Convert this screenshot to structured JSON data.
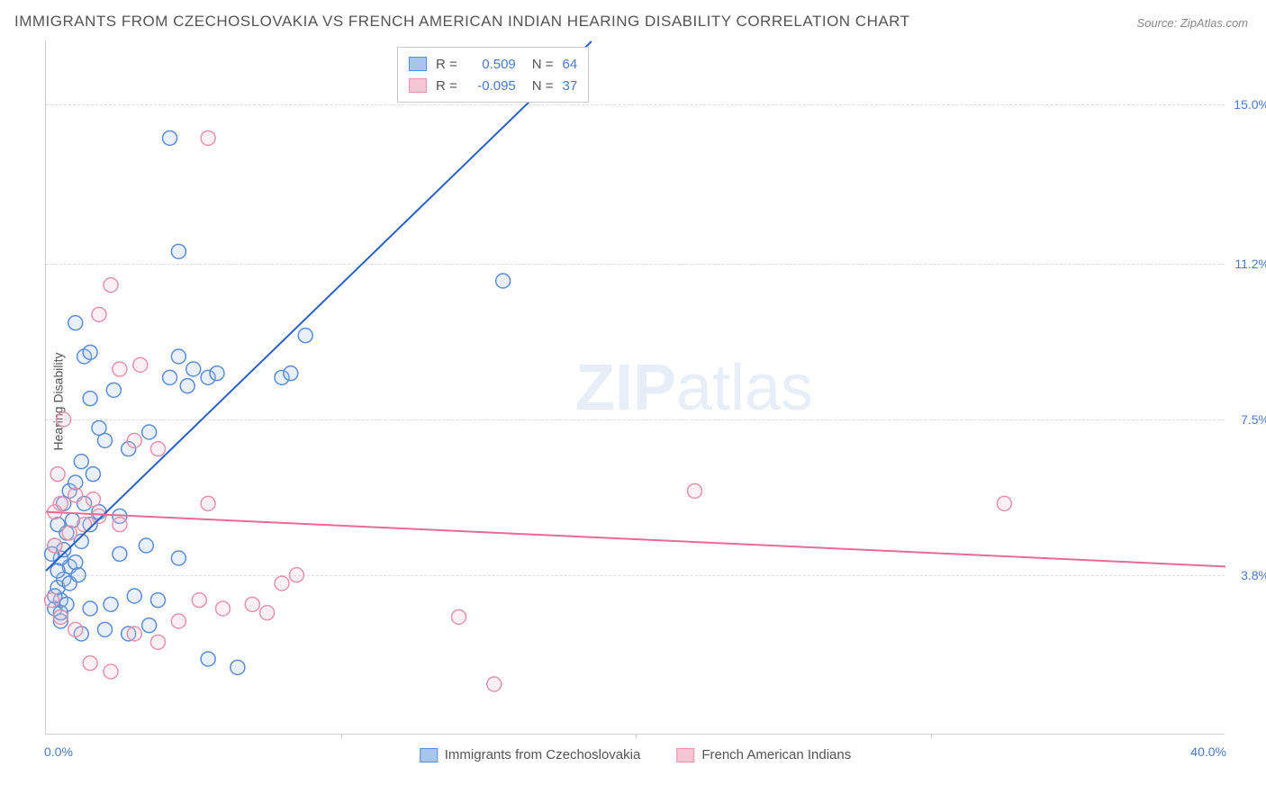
{
  "title": "IMMIGRANTS FROM CZECHOSLOVAKIA VS FRENCH AMERICAN INDIAN HEARING DISABILITY CORRELATION CHART",
  "source": "Source: ZipAtlas.com",
  "ylabel": "Hearing Disability",
  "watermark_bold": "ZIP",
  "watermark_rest": "atlas",
  "chart": {
    "type": "scatter",
    "xlim": [
      0,
      40
    ],
    "ylim": [
      0,
      16.5
    ],
    "xtick_labels": [
      "0.0%",
      "40.0%"
    ],
    "xtick_positions": [
      0,
      40
    ],
    "xtick_minor_positions": [
      10,
      20,
      30
    ],
    "ytick_labels": [
      "3.8%",
      "7.5%",
      "11.2%",
      "15.0%"
    ],
    "ytick_positions": [
      3.8,
      7.5,
      11.2,
      15.0
    ],
    "background_color": "#ffffff",
    "grid_color": "#dddddd",
    "axis_color": "#cccccc",
    "marker_radius": 8,
    "marker_stroke_width": 1.5,
    "marker_fill_opacity": 0.25,
    "trend_line_width": 2,
    "series": [
      {
        "name": "Immigrants from Czechoslovakia",
        "color_stroke": "#5b8dd6",
        "color_fill": "#a8c5eb",
        "trend_color": "#2b5fc2",
        "R": "0.509",
        "N": "64",
        "trend": {
          "x1": 0,
          "y1": 3.9,
          "x2": 18.5,
          "y2": 16.5
        },
        "points": [
          {
            "x": 0.3,
            "y": 3.0
          },
          {
            "x": 0.5,
            "y": 3.2
          },
          {
            "x": 0.4,
            "y": 3.5
          },
          {
            "x": 0.6,
            "y": 3.7
          },
          {
            "x": 0.8,
            "y": 4.0
          },
          {
            "x": 0.5,
            "y": 4.2
          },
          {
            "x": 1.0,
            "y": 4.1
          },
          {
            "x": 0.3,
            "y": 4.5
          },
          {
            "x": 0.7,
            "y": 4.8
          },
          {
            "x": 1.2,
            "y": 4.6
          },
          {
            "x": 0.4,
            "y": 5.0
          },
          {
            "x": 0.9,
            "y": 5.1
          },
          {
            "x": 1.5,
            "y": 5.0
          },
          {
            "x": 0.6,
            "y": 5.5
          },
          {
            "x": 1.3,
            "y": 5.5
          },
          {
            "x": 0.8,
            "y": 5.8
          },
          {
            "x": 1.8,
            "y": 5.3
          },
          {
            "x": 1.0,
            "y": 6.0
          },
          {
            "x": 1.6,
            "y": 6.2
          },
          {
            "x": 2.5,
            "y": 5.2
          },
          {
            "x": 0.5,
            "y": 2.7
          },
          {
            "x": 1.2,
            "y": 2.4
          },
          {
            "x": 2.0,
            "y": 2.5
          },
          {
            "x": 2.8,
            "y": 2.4
          },
          {
            "x": 3.5,
            "y": 2.6
          },
          {
            "x": 1.5,
            "y": 3.0
          },
          {
            "x": 2.2,
            "y": 3.1
          },
          {
            "x": 3.0,
            "y": 3.3
          },
          {
            "x": 3.8,
            "y": 3.2
          },
          {
            "x": 2.5,
            "y": 4.3
          },
          {
            "x": 3.4,
            "y": 4.5
          },
          {
            "x": 4.5,
            "y": 4.2
          },
          {
            "x": 5.5,
            "y": 1.8
          },
          {
            "x": 6.5,
            "y": 1.6
          },
          {
            "x": 1.2,
            "y": 6.5
          },
          {
            "x": 2.0,
            "y": 7.0
          },
          {
            "x": 1.8,
            "y": 7.3
          },
          {
            "x": 2.8,
            "y": 6.8
          },
          {
            "x": 3.5,
            "y": 7.2
          },
          {
            "x": 1.5,
            "y": 8.0
          },
          {
            "x": 2.3,
            "y": 8.2
          },
          {
            "x": 4.2,
            "y": 8.5
          },
          {
            "x": 4.8,
            "y": 8.3
          },
          {
            "x": 5.5,
            "y": 8.5
          },
          {
            "x": 5.8,
            "y": 8.6
          },
          {
            "x": 8.0,
            "y": 8.5
          },
          {
            "x": 8.3,
            "y": 8.6
          },
          {
            "x": 1.3,
            "y": 9.0
          },
          {
            "x": 1.5,
            "y": 9.1
          },
          {
            "x": 4.5,
            "y": 9.0
          },
          {
            "x": 8.8,
            "y": 9.5
          },
          {
            "x": 1.0,
            "y": 9.8
          },
          {
            "x": 15.5,
            "y": 10.8
          },
          {
            "x": 4.5,
            "y": 11.5
          },
          {
            "x": 4.2,
            "y": 14.2
          },
          {
            "x": 0.3,
            "y": 3.3
          },
          {
            "x": 0.4,
            "y": 3.9
          },
          {
            "x": 0.6,
            "y": 4.4
          },
          {
            "x": 0.8,
            "y": 3.6
          },
          {
            "x": 1.1,
            "y": 3.8
          },
          {
            "x": 0.2,
            "y": 4.3
          },
          {
            "x": 0.5,
            "y": 2.9
          },
          {
            "x": 0.7,
            "y": 3.1
          },
          {
            "x": 5.0,
            "y": 8.7
          }
        ]
      },
      {
        "name": "French American Indians",
        "color_stroke": "#e593ab",
        "color_fill": "#f5c5d3",
        "trend_color": "#e86b93",
        "R": "-0.095",
        "N": "37",
        "trend": {
          "x1": 0,
          "y1": 5.3,
          "x2": 40,
          "y2": 4.0
        },
        "points": [
          {
            "x": 0.2,
            "y": 3.2
          },
          {
            "x": 0.5,
            "y": 2.8
          },
          {
            "x": 1.0,
            "y": 2.5
          },
          {
            "x": 1.5,
            "y": 1.7
          },
          {
            "x": 2.2,
            "y": 1.5
          },
          {
            "x": 3.0,
            "y": 2.4
          },
          {
            "x": 3.8,
            "y": 2.2
          },
          {
            "x": 4.5,
            "y": 2.7
          },
          {
            "x": 5.2,
            "y": 3.2
          },
          {
            "x": 6.0,
            "y": 3.0
          },
          {
            "x": 7.0,
            "y": 3.1
          },
          {
            "x": 8.0,
            "y": 3.6
          },
          {
            "x": 8.5,
            "y": 3.8
          },
          {
            "x": 14.0,
            "y": 2.8
          },
          {
            "x": 15.2,
            "y": 1.2
          },
          {
            "x": 0.3,
            "y": 4.5
          },
          {
            "x": 0.8,
            "y": 4.8
          },
          {
            "x": 1.3,
            "y": 5.0
          },
          {
            "x": 1.8,
            "y": 5.2
          },
          {
            "x": 2.5,
            "y": 5.0
          },
          {
            "x": 0.5,
            "y": 5.5
          },
          {
            "x": 1.0,
            "y": 5.7
          },
          {
            "x": 1.6,
            "y": 5.6
          },
          {
            "x": 0.4,
            "y": 6.2
          },
          {
            "x": 5.5,
            "y": 5.5
          },
          {
            "x": 3.0,
            "y": 7.0
          },
          {
            "x": 3.8,
            "y": 6.8
          },
          {
            "x": 0.6,
            "y": 7.5
          },
          {
            "x": 2.5,
            "y": 8.7
          },
          {
            "x": 3.2,
            "y": 8.8
          },
          {
            "x": 1.8,
            "y": 10.0
          },
          {
            "x": 2.2,
            "y": 10.7
          },
          {
            "x": 5.5,
            "y": 14.2
          },
          {
            "x": 22.0,
            "y": 5.8
          },
          {
            "x": 32.5,
            "y": 5.5
          },
          {
            "x": 0.3,
            "y": 5.3
          },
          {
            "x": 7.5,
            "y": 2.9
          }
        ]
      }
    ]
  },
  "legend_top": {
    "r_label": "R =",
    "n_label": "N ="
  },
  "colors": {
    "title": "#555555",
    "source": "#888888",
    "tick_label": "#4a7bc8",
    "r_text": "#555555",
    "val_blue": "#4a7bc8"
  }
}
